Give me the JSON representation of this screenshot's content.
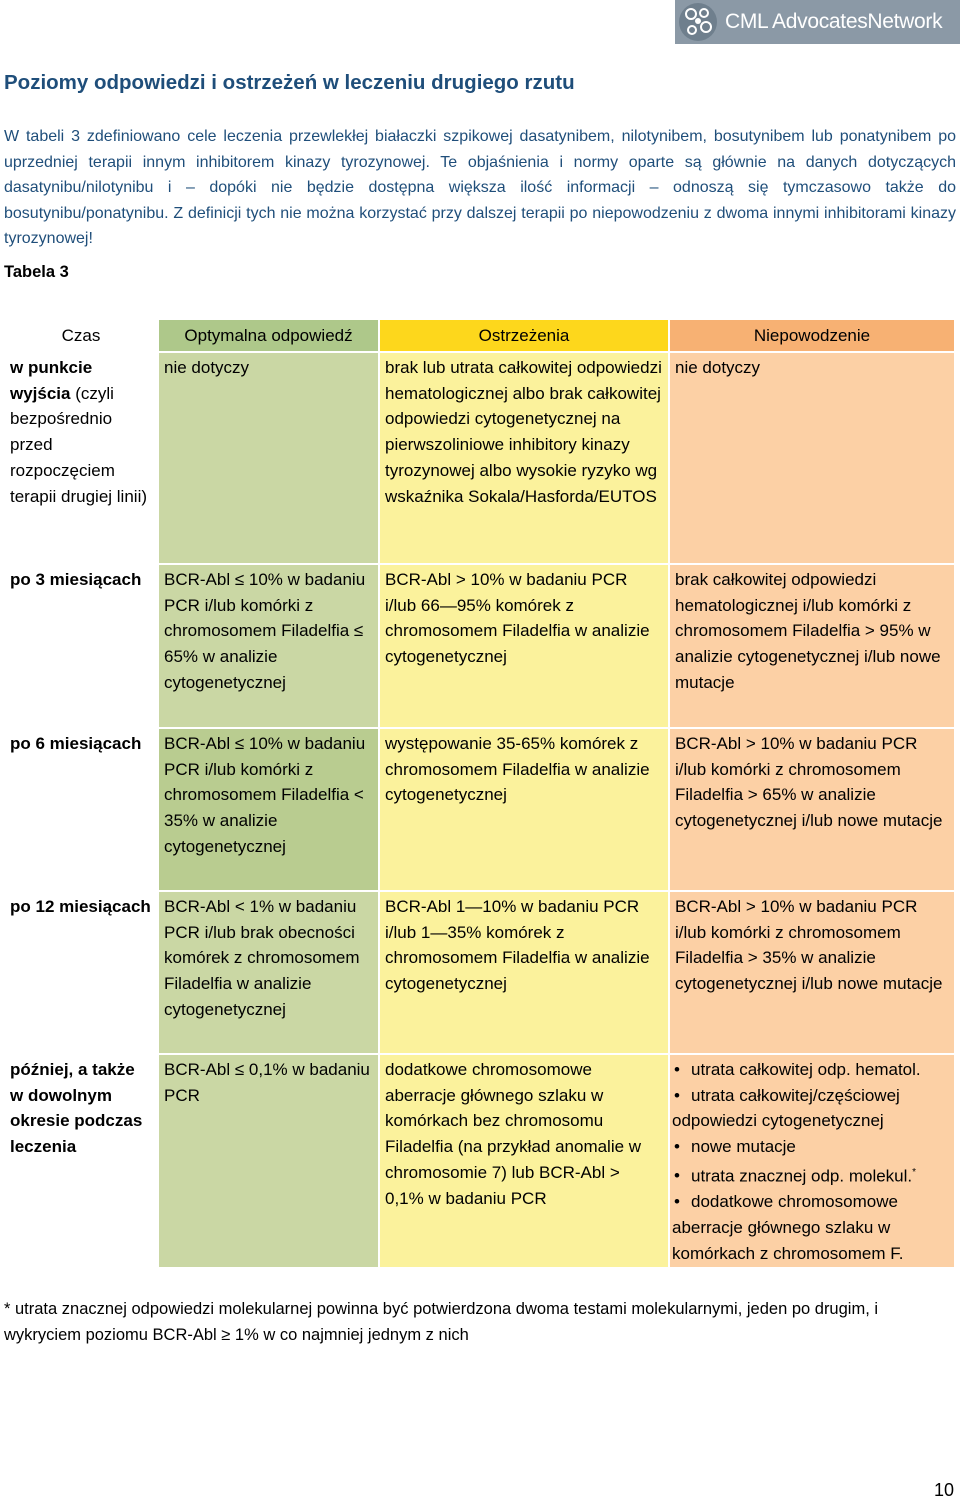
{
  "logo": {
    "text": "CML AdvocatesNetwork",
    "icon": "network-logo-icon"
  },
  "heading": "Poziomy odpowiedzi i ostrzeżeń w leczeniu drugiego rzutu",
  "intro": {
    "p1": "W tabeli 3 zdefiniowano cele leczenia przewlekłej białaczki szpikowej dasatynibem, nilotynibem, bosutynibem lub ponatynibem po uprzedniej terapii innym inhibitorem kinazy tyrozynowej.",
    "p2": " Te objaśnienia i normy oparte są głównie na danych dotyczących dasatynibu/nilotynibu i – dopóki nie będzie dostępna większa ilość informacji – odnoszą się tymczasowo także do bosutynibu/ponatynibu. Z definicji tych nie można korzystać przy dalszej terapii po niepowodzeniu z dwoma innymi inhibitorami kinazy tyrozynowej!"
  },
  "table_label": "Tabela 3",
  "table": {
    "headers": [
      "Czas",
      "Optymalna odpowiedź",
      "Ostrzeżenia",
      "Niepowodzenie"
    ],
    "rows": [
      {
        "czas_bold": "w punkcie wyjścia",
        "czas_rest": " (czyli bezpośrednio przed rozpoczęciem terapii drugiej linii)",
        "opt": "nie dotyczy",
        "ost": "brak lub utrata całkowitej odpowiedzi hematologicznej albo brak całkowitej odpowiedzi cytogenetycznej na pierwszoliniowe inhibitory kinazy tyrozynowej albo wysokie ryzyko wg wskaźnika Sokala/Hasforda/EUTOS",
        "nie": "nie dotyczy"
      },
      {
        "czas_bold": "po 3 miesiącach",
        "czas_rest": "",
        "opt": "BCR-Abl ≤ 10% w badaniu PCR i/lub komórki z chromosomem Filadelfia ≤ 65% w analizie cytogenetycznej",
        "ost": "BCR-Abl > 10% w badaniu PCR i/lub 66—95% komórek z chromosomem Filadelfia w analizie cytogenetycznej",
        "nie": "brak całkowitej odpowiedzi hematologicznej i/lub komórki z chromosomem Filadelfia > 95% w analizie cytogenetycznej i/lub nowe mutacje"
      },
      {
        "czas_bold": "po 6 miesiącach",
        "czas_rest": "",
        "opt": "BCR-Abl ≤ 10% w badaniu PCR i/lub komórki z chromosomem Filadelfia < 35% w analizie cytogenetycznej",
        "ost": "występowanie 35-65% komórek z chromosomem Filadelfia w analizie cytogenetycznej",
        "nie": "BCR-Abl > 10% w badaniu PCR i/lub komórki z chromosomem Filadelfia > 65% w analizie cytogenetycznej i/lub nowe mutacje"
      },
      {
        "czas_bold": "po 12 miesiącach",
        "czas_rest": "",
        "opt": "BCR-Abl < 1% w badaniu PCR i/lub brak obecności komórek z chromosomem Filadelfia w analizie cytogenetycznej",
        "ost": "BCR-Abl 1—10% w badaniu PCR i/lub 1—35% komórek z chromosomem Filadelfia w analizie cytogenetycznej",
        "nie": "BCR-Abl > 10% w badaniu PCR i/lub komórki z chromosomem Filadelfia > 35% w analizie cytogenetycznej i/lub nowe mutacje"
      },
      {
        "czas_bold": "później, a także w dowolnym okresie podczas leczenia",
        "czas_rest": "",
        "opt": "BCR-Abl ≤ 0,1% w badaniu PCR",
        "ost": "dodatkowe chromosomowe aberracje głównego szlaku w komórkach bez chromosomu Filadelfia (na przykład anomalie w chromosomie 7) lub BCR-Abl > 0,1% w badaniu PCR",
        "nie_list": [
          "utrata całkowitej odp. hematol.",
          "utrata całkowitej/częściowej odpowiedzi cytogenetycznej",
          "nowe mutacje",
          "utrata znacznej odp. molekul.",
          "dodatkowe chromosomowe aberracje głównego szlaku w komórkach z chromosomem F."
        ],
        "nie_mark": "*"
      }
    ]
  },
  "footnote": "* utrata znacznej odpowiedzi molekularnej powinna być potwierdzona dwoma testami molekularnymi, jeden po drugim, i wykryciem poziomu BCR-Abl ≥ 1% w co najmniej jednym z nich",
  "page_number": "10",
  "colors": {
    "heading": "#1f4e7a",
    "optimal_header": "#aec88a",
    "optimal_cell": "#cad7a4",
    "warning_header": "#fdd71c",
    "warning_cell": "#fbf29c",
    "failure_header": "#f7b173",
    "failure_cell": "#fcd0a5"
  }
}
